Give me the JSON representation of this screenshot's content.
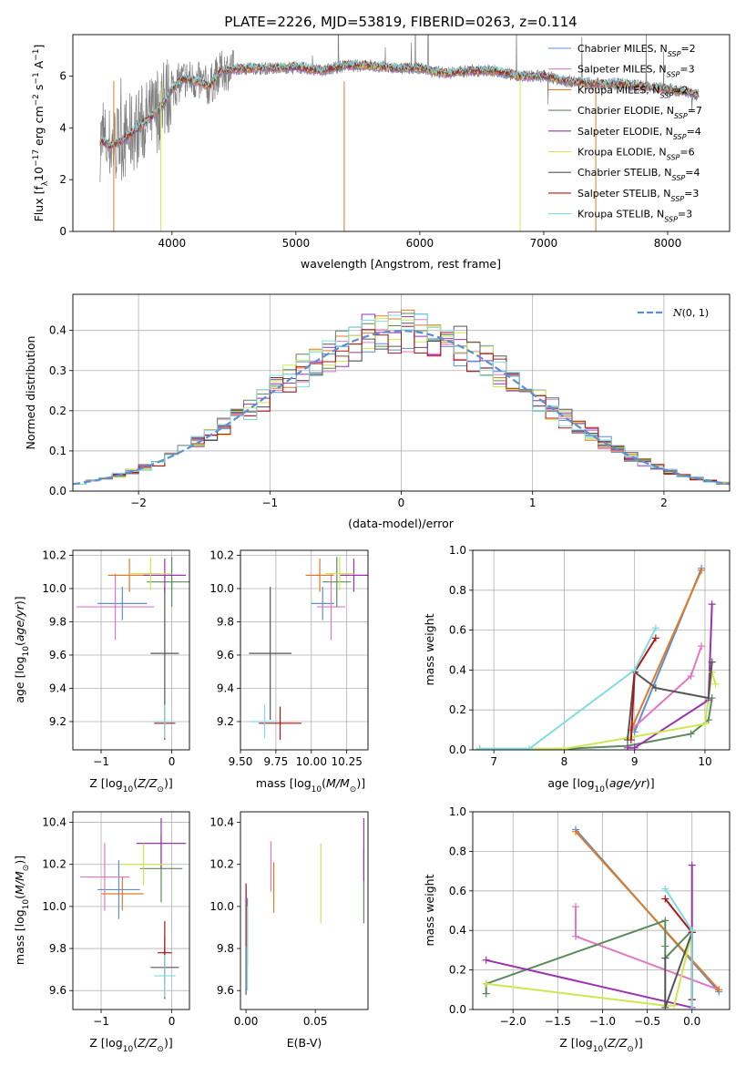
{
  "colors": {
    "Chabrier MILES": "#5a8fd6",
    "Salpeter MILES": "#e377c2",
    "Kroupa MILES": "#e07b25",
    "Chabrier ELODIE": "#5b8a5e",
    "Salpeter ELODIE": "#9b30b0",
    "Kroupa ELODIE": "#cde84e",
    "Chabrier STELIB": "#555555",
    "Salpeter STELIB": "#b01414",
    "Kroupa STELIB": "#7fdde2",
    "gauss": "#5a8fd6",
    "spectrum": "#7f7f7f"
  },
  "chart_data": [
    {
      "id": "spectrum",
      "type": "line",
      "title": "PLATE=2226, MJD=53819, FIBERID=0263, z=0.114",
      "xlabel": "wavelength [Angstrom, rest frame]",
      "ylabel": "Flux [f_λ10^-17 erg cm^-2 s^-1 A^-1]",
      "xlim": [
        3200,
        8500
      ],
      "ylim": [
        0,
        7.6
      ],
      "xticks": [
        4000,
        5000,
        6000,
        7000,
        8000
      ],
      "yticks": [
        0,
        2,
        4,
        6
      ],
      "grid": false,
      "legend_position": "right",
      "legend": [
        {
          "label": "Chabrier MILES, N",
          "sub": "SSP",
          "n": "=2"
        },
        {
          "label": "Salpeter MILES, N",
          "sub": "SSP",
          "n": "=3"
        },
        {
          "label": "Kroupa MILES, N",
          "sub": "SSP",
          "n": "=2"
        },
        {
          "label": "Chabrier ELODIE, N",
          "sub": "SSP",
          "n": "=7"
        },
        {
          "label": "Salpeter ELODIE, N",
          "sub": "SSP",
          "n": "=4"
        },
        {
          "label": "Kroupa ELODIE, N",
          "sub": "SSP",
          "n": "=6"
        },
        {
          "label": "Chabrier STELIB, N",
          "sub": "SSP",
          "n": "=4"
        },
        {
          "label": "Salpeter STELIB, N",
          "sub": "SSP",
          "n": "=3"
        },
        {
          "label": "Kroupa STELIB, N",
          "sub": "SSP",
          "n": "=3"
        }
      ],
      "legend_keys": [
        "Chabrier MILES",
        "Salpeter MILES",
        "Kroupa MILES",
        "Chabrier ELODIE",
        "Salpeter ELODIE",
        "Kroupa ELODIE",
        "Chabrier STELIB",
        "Salpeter STELIB",
        "Kroupa STELIB"
      ],
      "continuum_x": [
        3420,
        3500,
        3600,
        3700,
        3800,
        3900,
        4000,
        4100,
        4200,
        4300,
        4400,
        4600,
        4800,
        5000,
        5200,
        5400,
        5600,
        5800,
        6000,
        6200,
        6400,
        6600,
        6800,
        7000,
        7200,
        7400,
        7600,
        7800,
        8000,
        8250
      ],
      "continuum_y": [
        3.5,
        3.3,
        3.5,
        3.9,
        4.3,
        4.7,
        5.5,
        5.9,
        5.8,
        5.6,
        6.2,
        6.3,
        6.3,
        6.35,
        6.2,
        6.4,
        6.4,
        6.3,
        6.3,
        6.1,
        6.2,
        6.2,
        6.0,
        6.0,
        5.8,
        5.7,
        5.7,
        5.6,
        5.5,
        5.3
      ]
    },
    {
      "id": "residuals",
      "type": "step",
      "xlabel": "(data-model)/error",
      "ylabel": "Normed distribution",
      "xlim": [
        -2.5,
        2.5
      ],
      "ylim": [
        0,
        0.49
      ],
      "xticks": [
        -2,
        -1,
        0,
        1,
        2
      ],
      "yticks": [
        0.0,
        0.1,
        0.2,
        0.3,
        0.4
      ],
      "grid": true,
      "legend_position": "top-right",
      "legend": "N(0,1)",
      "bin_width": 0.1
    },
    {
      "id": "age-vs-Z",
      "type": "errorbar",
      "xlabel": "Z [log10(Z/Z☉)]",
      "ylabel": "age [log10(age/yr)]",
      "xlim": [
        -1.4,
        0.25
      ],
      "ylim": [
        9.03,
        10.23
      ],
      "xticks": [
        -1,
        0
      ],
      "yticks": [
        9.2,
        9.4,
        9.6,
        9.8,
        10.0,
        10.2
      ],
      "grid": true,
      "points": [
        {
          "key": "Chabrier MILES",
          "x": -0.7,
          "xerr": 0.35,
          "y": 9.91,
          "yerr": 0.1
        },
        {
          "key": "Salpeter MILES",
          "x": -0.8,
          "xerr": 0.55,
          "y": 9.89,
          "yerr": 0.2
        },
        {
          "key": "Kroupa MILES",
          "x": -0.6,
          "xerr": 0.3,
          "y": 10.08,
          "yerr": 0.1
        },
        {
          "key": "Chabrier ELODIE",
          "x": 0.0,
          "xerr": 0.35,
          "y": 10.04,
          "yerr": 0.15
        },
        {
          "key": "Salpeter ELODIE",
          "x": -0.1,
          "xerr": 0.3,
          "y": 10.08,
          "yerr": 0.1
        },
        {
          "key": "Kroupa ELODIE",
          "x": -0.3,
          "xerr": 0.3,
          "y": 10.09,
          "yerr": 0.1
        },
        {
          "key": "Chabrier STELIB",
          "x": -0.1,
          "xerr": 0.2,
          "y": 9.61,
          "yerr": 0.4
        },
        {
          "key": "Salpeter STELIB",
          "x": -0.1,
          "xerr": 0.15,
          "y": 9.19,
          "yerr": 0.1
        },
        {
          "key": "Kroupa STELIB",
          "x": -0.1,
          "xerr": 0.15,
          "y": 9.2,
          "yerr": 0.1
        }
      ]
    },
    {
      "id": "age-vs-mass",
      "type": "errorbar",
      "xlabel": "mass [log10(M/M☉)]",
      "ylabel": "",
      "xlim": [
        9.5,
        10.4
      ],
      "ylim": [
        9.03,
        10.23
      ],
      "xticks": [
        9.5,
        9.75,
        10.0,
        10.25
      ],
      "xticklabels": [
        "9.50",
        "9.75",
        "10.00",
        "10.25"
      ],
      "yticks": [
        9.2,
        9.4,
        9.6,
        9.8,
        10.0,
        10.2
      ],
      "grid": true,
      "points": [
        {
          "key": "Chabrier MILES",
          "x": 10.08,
          "xerr": 0.08,
          "y": 9.91,
          "yerr": 0.1
        },
        {
          "key": "Salpeter MILES",
          "x": 10.14,
          "xerr": 0.1,
          "y": 9.89,
          "yerr": 0.2
        },
        {
          "key": "Kroupa MILES",
          "x": 10.06,
          "xerr": 0.1,
          "y": 10.08,
          "yerr": 0.1
        },
        {
          "key": "Chabrier ELODIE",
          "x": 10.18,
          "xerr": 0.1,
          "y": 10.04,
          "yerr": 0.15
        },
        {
          "key": "Salpeter ELODIE",
          "x": 10.3,
          "xerr": 0.1,
          "y": 10.08,
          "yerr": 0.1
        },
        {
          "key": "Kroupa ELODIE",
          "x": 10.2,
          "xerr": 0.1,
          "y": 10.09,
          "yerr": 0.1
        },
        {
          "key": "Chabrier STELIB",
          "x": 9.71,
          "xerr": 0.15,
          "y": 9.61,
          "yerr": 0.4
        },
        {
          "key": "Salpeter STELIB",
          "x": 9.78,
          "xerr": 0.15,
          "y": 9.19,
          "yerr": 0.1
        },
        {
          "key": "Kroupa STELIB",
          "x": 9.67,
          "xerr": 0.1,
          "y": 9.2,
          "yerr": 0.1
        }
      ]
    },
    {
      "id": "massweight-vs-age",
      "type": "line",
      "xlabel": "age [log10(age/yr)]",
      "ylabel": "mass weight",
      "xlim": [
        6.7,
        10.35
      ],
      "ylim": [
        0,
        1.0
      ],
      "xticks": [
        7,
        8,
        9,
        10
      ],
      "yticks": [
        0.0,
        0.2,
        0.4,
        0.6,
        0.8,
        1.0
      ],
      "grid": true,
      "series": [
        {
          "key": "Chabrier MILES",
          "x": [
            9.0,
            9.95
          ],
          "y": [
            0.09,
            0.91
          ]
        },
        {
          "key": "Salpeter MILES",
          "x": [
            8.95,
            9.8,
            9.95
          ],
          "y": [
            0.1,
            0.37,
            0.52
          ]
        },
        {
          "key": "Kroupa MILES",
          "x": [
            8.95,
            9.95
          ],
          "y": [
            0.1,
            0.9
          ]
        },
        {
          "key": "Chabrier ELODIE",
          "x": [
            6.8,
            8.0,
            8.9,
            9.8,
            10.05,
            10.1
          ],
          "y": [
            0.005,
            0.005,
            0.02,
            0.08,
            0.15,
            0.26
          ]
        },
        {
          "key": "Salpeter ELODIE",
          "x": [
            8.9,
            9.0,
            10.05,
            10.1
          ],
          "y": [
            0.01,
            0.01,
            0.25,
            0.73
          ]
        },
        {
          "key": "Kroupa ELODIE",
          "x": [
            6.8,
            8.0,
            8.9,
            10.0,
            10.1,
            10.15
          ],
          "y": [
            0.005,
            0.005,
            0.06,
            0.13,
            0.39,
            0.33
          ]
        },
        {
          "key": "Chabrier STELIB",
          "x": [
            8.9,
            9.0,
            9.3,
            10.05,
            10.1
          ],
          "y": [
            0.05,
            0.39,
            0.31,
            0.26,
            0.44
          ]
        },
        {
          "key": "Salpeter STELIB",
          "x": [
            8.95,
            9.0,
            9.3
          ],
          "y": [
            0.05,
            0.39,
            0.56
          ]
        },
        {
          "key": "Kroupa STELIB",
          "x": [
            6.8,
            7.5,
            9.0,
            9.3
          ],
          "y": [
            0.005,
            0.005,
            0.4,
            0.61
          ]
        }
      ]
    },
    {
      "id": "mass-vs-Z",
      "type": "errorbar",
      "xlabel": "Z [log10(Z/Z☉)]",
      "ylabel": "mass [log10(M/M☉)]",
      "xlim": [
        -1.4,
        0.25
      ],
      "ylim": [
        9.51,
        10.45
      ],
      "xticks": [
        -1,
        0
      ],
      "yticks": [
        9.6,
        9.8,
        10.0,
        10.2,
        10.4
      ],
      "grid": true,
      "points": [
        {
          "key": "Chabrier MILES",
          "x": -0.75,
          "xerr": 0.3,
          "y": 10.08,
          "yerr": 0.14
        },
        {
          "key": "Salpeter MILES",
          "x": -0.95,
          "xerr": 0.35,
          "y": 10.14,
          "yerr": 0.16
        },
        {
          "key": "Kroupa MILES",
          "x": -0.7,
          "xerr": 0.3,
          "y": 10.06,
          "yerr": 0.08
        },
        {
          "key": "Chabrier ELODIE",
          "x": -0.15,
          "xerr": 0.3,
          "y": 10.18,
          "yerr": 0.16
        },
        {
          "key": "Salpeter ELODIE",
          "x": -0.15,
          "xerr": 0.35,
          "y": 10.3,
          "yerr": 0.12
        },
        {
          "key": "Kroupa ELODIE",
          "x": -0.4,
          "xerr": 0.3,
          "y": 10.2,
          "yerr": 0.1
        },
        {
          "key": "Chabrier STELIB",
          "x": -0.1,
          "xerr": 0.2,
          "y": 9.71,
          "yerr": 0.15
        },
        {
          "key": "Salpeter STELIB",
          "x": -0.1,
          "xerr": 0.1,
          "y": 9.78,
          "yerr": 0.15
        },
        {
          "key": "Kroupa STELIB",
          "x": -0.1,
          "xerr": 0.15,
          "y": 9.67,
          "yerr": 0.1
        }
      ]
    },
    {
      "id": "mass-vs-ebv",
      "type": "errorbar",
      "xlabel": "E(B-V)",
      "ylabel": "",
      "xlim": [
        -0.004,
        0.088
      ],
      "ylim": [
        9.51,
        10.45
      ],
      "xticks": [
        0.0,
        0.05
      ],
      "xticklabels": [
        "0.00",
        "0.05"
      ],
      "yticks": [
        9.6,
        9.8,
        10.0,
        10.2,
        10.4
      ],
      "grid": false,
      "points": [
        {
          "key": "Chabrier MILES",
          "x": 0.001,
          "xerr": 0,
          "y": 9.88,
          "yerr": 0.16
        },
        {
          "key": "Salpeter MILES",
          "x": 0.018,
          "xerr": 0,
          "y": 10.19,
          "yerr": 0.12
        },
        {
          "key": "Kroupa MILES",
          "x": 0.02,
          "xerr": 0,
          "y": 10.09,
          "yerr": 0.12
        },
        {
          "key": "Chabrier ELODIE",
          "x": 0.085,
          "xerr": 0,
          "y": 10.1,
          "yerr": 0.18
        },
        {
          "key": "Salpeter ELODIE",
          "x": 0.085,
          "xerr": 0,
          "y": 10.27,
          "yerr": 0.15
        },
        {
          "key": "Kroupa ELODIE",
          "x": 0.054,
          "xerr": 0,
          "y": 10.11,
          "yerr": 0.19
        },
        {
          "key": "Chabrier STELIB",
          "x": 0.0,
          "xerr": 0,
          "y": 9.84,
          "yerr": 0.26
        },
        {
          "key": "Salpeter STELIB",
          "x": 0.0,
          "xerr": 0,
          "y": 9.96,
          "yerr": 0.15
        },
        {
          "key": "Kroupa STELIB",
          "x": 0.001,
          "xerr": 0,
          "y": 9.8,
          "yerr": 0.2
        }
      ]
    },
    {
      "id": "massweight-vs-Z",
      "type": "line",
      "xlabel": "Z [log10(Z/Z☉)]",
      "ylabel": "mass weight",
      "xlim": [
        -2.45,
        0.42
      ],
      "ylim": [
        0,
        1.0
      ],
      "xticks": [
        -2.0,
        -1.5,
        -1.0,
        -0.5,
        0.0
      ],
      "xticklabels": [
        "−2.0",
        "−1.5",
        "−1.0",
        "−0.5",
        "0.0"
      ],
      "yticks": [
        0.0,
        0.2,
        0.4,
        0.6,
        0.8,
        1.0
      ],
      "grid": true,
      "series": [
        {
          "key": "Chabrier MILES",
          "x": [
            -1.3,
            0.3
          ],
          "y": [
            0.91,
            0.09
          ]
        },
        {
          "key": "Salpeter MILES",
          "x": [
            -1.3,
            -1.3,
            0.3
          ],
          "y": [
            0.52,
            0.37,
            0.1
          ]
        },
        {
          "key": "Kroupa MILES",
          "x": [
            -1.3,
            0.3
          ],
          "y": [
            0.9,
            0.1
          ]
        },
        {
          "key": "Chabrier ELODIE",
          "x": [
            -2.3,
            -2.3,
            -0.3,
            -0.3,
            -0.3,
            0.0
          ],
          "y": [
            0.08,
            0.13,
            0.45,
            0.32,
            0.26,
            0.4
          ]
        },
        {
          "key": "Salpeter ELODIE",
          "x": [
            -2.3,
            0.0,
            0.0
          ],
          "y": [
            0.25,
            0.01,
            0.73
          ]
        },
        {
          "key": "Kroupa ELODIE",
          "x": [
            -2.3,
            -0.3,
            -0.2,
            0.0
          ],
          "y": [
            0.13,
            0.02,
            0.02,
            0.39
          ]
        },
        {
          "key": "Chabrier STELIB",
          "x": [
            -0.3,
            -0.3,
            0.0,
            0.0
          ],
          "y": [
            0.26,
            0.01,
            0.39,
            0.05
          ]
        },
        {
          "key": "Salpeter STELIB",
          "x": [
            -0.3,
            0.0,
            0.0
          ],
          "y": [
            0.56,
            0.39,
            0.05
          ]
        },
        {
          "key": "Kroupa STELIB",
          "x": [
            -0.3,
            0.0,
            0.0
          ],
          "y": [
            0.61,
            0.4,
            0.0
          ]
        }
      ]
    }
  ]
}
